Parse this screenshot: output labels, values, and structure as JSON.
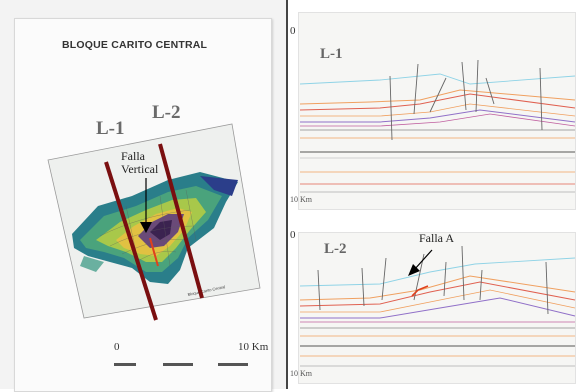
{
  "map": {
    "title": "BLOQUE CARITO CENTRAL",
    "line1_label": "L-1",
    "line2_label": "L-2",
    "fault_label_line1": "Falla",
    "fault_label_line2": "Vertical",
    "scale_start": "0",
    "scale_end": "10 Km"
  },
  "sections": [
    {
      "label": "L-1",
      "depth_top": "0",
      "scale": "10 Km"
    },
    {
      "label": "L-2",
      "depth_top": "0",
      "scale": "10 Km",
      "fault_label": "Falla A"
    }
  ],
  "colors": {
    "profile_line": "#7a0f10",
    "fault_marker": "#e0401c",
    "horizon_cyan": "#8fd3e6",
    "horizon_orange": "#f0a060",
    "horizon_red": "#e06050",
    "horizon_purple": "#9070c8"
  }
}
